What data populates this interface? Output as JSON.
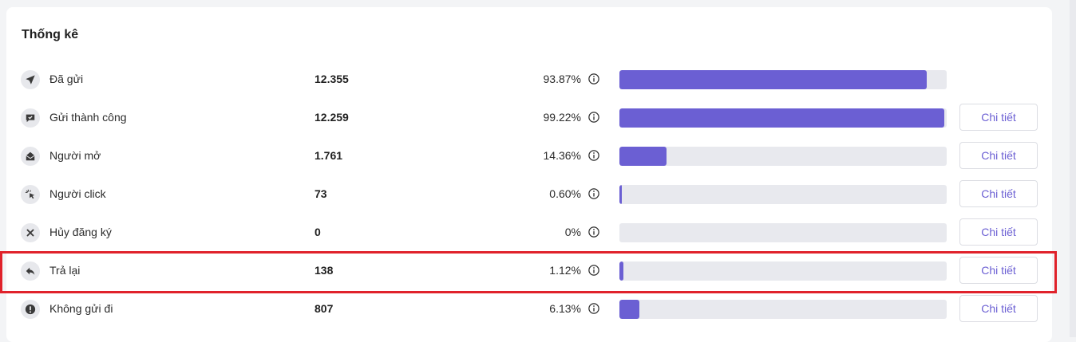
{
  "title": "Thống kê",
  "detail_label": "Chi tiết",
  "accent_color": "#6b5fd3",
  "highlight_color": "#e0222b",
  "rows": [
    {
      "icon": "send-icon",
      "label": "Đã gửi",
      "count": "12.355",
      "percent": "93.87%",
      "fraction": 0.9387,
      "has_detail": false
    },
    {
      "icon": "message-check-icon",
      "label": "Gửi thành công",
      "count": "12.259",
      "percent": "99.22%",
      "fraction": 0.9922,
      "has_detail": true
    },
    {
      "icon": "open-mail-icon",
      "label": "Người mở",
      "count": "1.761",
      "percent": "14.36%",
      "fraction": 0.1436,
      "has_detail": true
    },
    {
      "icon": "cursor-click-icon",
      "label": "Người click",
      "count": "73",
      "percent": "0.60%",
      "fraction": 0.006,
      "has_detail": true
    },
    {
      "icon": "close-icon",
      "label": "Hủy đăng ký",
      "count": "0",
      "percent": "0%",
      "fraction": 0,
      "has_detail": true
    },
    {
      "icon": "reply-icon",
      "label": "Trả lại",
      "count": "138",
      "percent": "1.12%",
      "fraction": 0.0112,
      "has_detail": true,
      "highlighted": true
    },
    {
      "icon": "alert-icon",
      "label": "Không gửi đi",
      "count": "807",
      "percent": "6.13%",
      "fraction": 0.0613,
      "has_detail": true
    }
  ]
}
